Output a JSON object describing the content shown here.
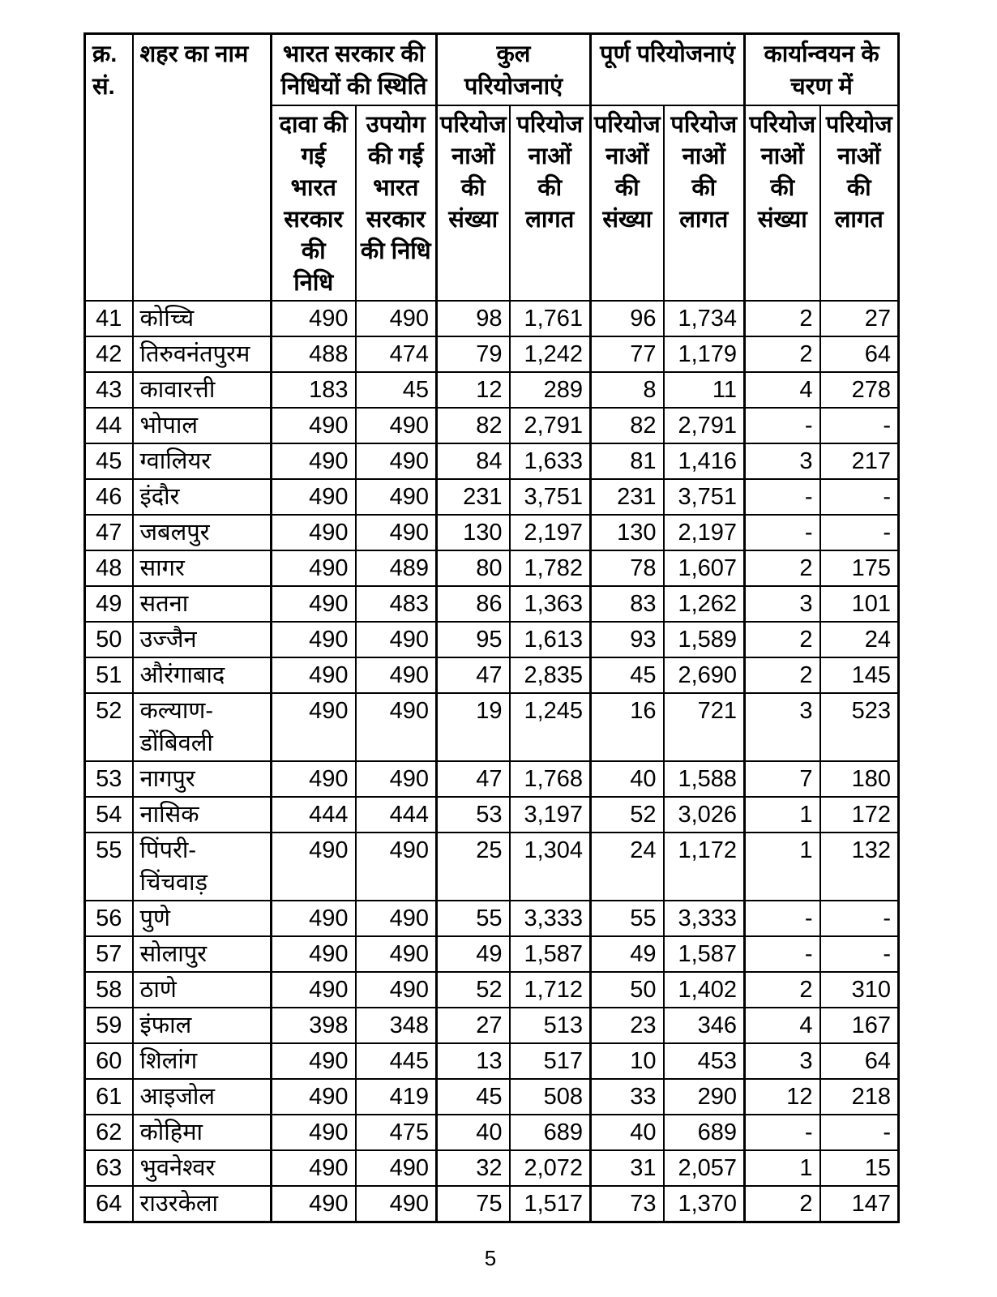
{
  "page": {
    "number": "5"
  },
  "table": {
    "col_headers": {
      "sn": "क्र.\nसं.",
      "city": "शहर का नाम",
      "group_funds": "भारत सरकार की\nनिधियों की स्थिति",
      "group_total": "कुल परियोजनाएं",
      "group_completed": "पूर्ण परियोजनाएं",
      "group_impl": "कार्यान्वयन के\nचरण में",
      "sub_claimed": "दावा की\nगई\nभारत\nसरकार\nकी\nनिधि",
      "sub_utilized": "उपयोग\nकी गई\nभारत\nसरकार\nकी निधि",
      "sub_count": "परियोज\nनाओं\nकी\nसंख्या",
      "sub_cost": "परियोज\nनाओं\nकी\nलागत"
    },
    "rows": [
      [
        "41",
        "कोच्चि",
        "490",
        "490",
        "98",
        "1,761",
        "96",
        "1,734",
        "2",
        "27"
      ],
      [
        "42",
        "तिरुवनंतपुरम",
        "488",
        "474",
        "79",
        "1,242",
        "77",
        "1,179",
        "2",
        "64"
      ],
      [
        "43",
        "कावारत्ती",
        "183",
        "45",
        "12",
        "289",
        "8",
        "11",
        "4",
        "278"
      ],
      [
        "44",
        "भोपाल",
        "490",
        "490",
        "82",
        "2,791",
        "82",
        "2,791",
        "-",
        "-"
      ],
      [
        "45",
        "ग्वालियर",
        "490",
        "490",
        "84",
        "1,633",
        "81",
        "1,416",
        "3",
        "217"
      ],
      [
        "46",
        "इंदौर",
        "490",
        "490",
        "231",
        "3,751",
        "231",
        "3,751",
        "-",
        "-"
      ],
      [
        "47",
        "जबलपुर",
        "490",
        "490",
        "130",
        "2,197",
        "130",
        "2,197",
        "-",
        "-"
      ],
      [
        "48",
        "सागर",
        "490",
        "489",
        "80",
        "1,782",
        "78",
        "1,607",
        "2",
        "175"
      ],
      [
        "49",
        "सतना",
        "490",
        "483",
        "86",
        "1,363",
        "83",
        "1,262",
        "3",
        "101"
      ],
      [
        "50",
        "उज्जैन",
        "490",
        "490",
        "95",
        "1,613",
        "93",
        "1,589",
        "2",
        "24"
      ],
      [
        "51",
        "औरंगाबाद",
        "490",
        "490",
        "47",
        "2,835",
        "45",
        "2,690",
        "2",
        "145"
      ],
      [
        "52",
        "कल्याण-\nडोंबिवली",
        "490",
        "490",
        "19",
        "1,245",
        "16",
        "721",
        "3",
        "523"
      ],
      [
        "53",
        "नागपुर",
        "490",
        "490",
        "47",
        "1,768",
        "40",
        "1,588",
        "7",
        "180"
      ],
      [
        "54",
        "नासिक",
        "444",
        "444",
        "53",
        "3,197",
        "52",
        "3,026",
        "1",
        "172"
      ],
      [
        "55",
        "पिंपरी-चिंचवाड़",
        "490",
        "490",
        "25",
        "1,304",
        "24",
        "1,172",
        "1",
        "132"
      ],
      [
        "56",
        "पुणे",
        "490",
        "490",
        "55",
        "3,333",
        "55",
        "3,333",
        "-",
        "-"
      ],
      [
        "57",
        "सोलापुर",
        "490",
        "490",
        "49",
        "1,587",
        "49",
        "1,587",
        "-",
        "-"
      ],
      [
        "58",
        "ठाणे",
        "490",
        "490",
        "52",
        "1,712",
        "50",
        "1,402",
        "2",
        "310"
      ],
      [
        "59",
        "इंफाल",
        "398",
        "348",
        "27",
        "513",
        "23",
        "346",
        "4",
        "167"
      ],
      [
        "60",
        "शिलांग",
        "490",
        "445",
        "13",
        "517",
        "10",
        "453",
        "3",
        "64"
      ],
      [
        "61",
        "आइजोल",
        "490",
        "419",
        "45",
        "508",
        "33",
        "290",
        "12",
        "218"
      ],
      [
        "62",
        "कोहिमा",
        "490",
        "475",
        "40",
        "689",
        "40",
        "689",
        "-",
        "-"
      ],
      [
        "63",
        "भुवनेश्वर",
        "490",
        "490",
        "32",
        "2,072",
        "31",
        "2,057",
        "1",
        "15"
      ],
      [
        "64",
        "राउरकेला",
        "490",
        "490",
        "75",
        "1,517",
        "73",
        "1,370",
        "2",
        "147"
      ]
    ]
  }
}
